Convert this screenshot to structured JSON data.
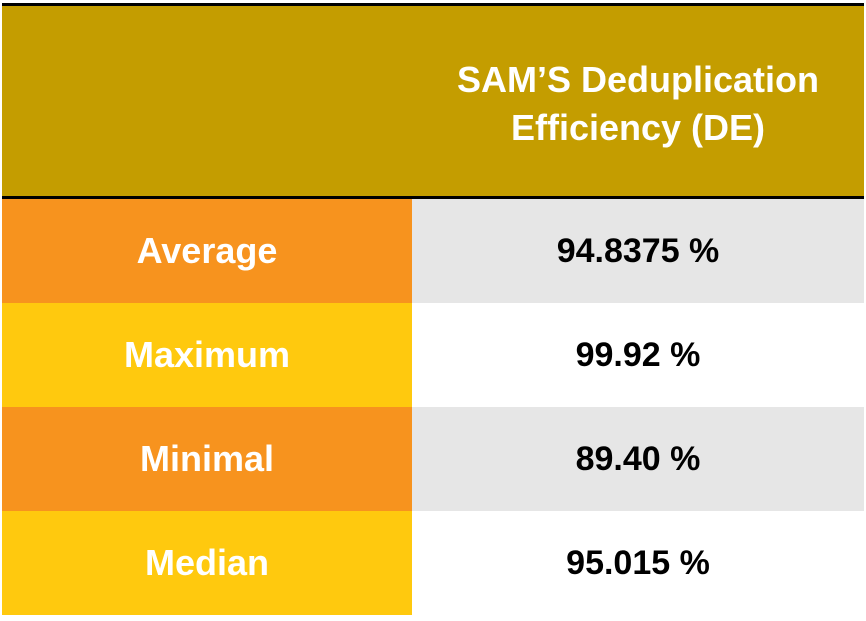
{
  "table": {
    "header": {
      "corner": "",
      "title_line1": "SAM’S Deduplication",
      "title_line2": "Efficiency (DE)"
    },
    "rows": [
      {
        "label": "Average",
        "value": "94.8375 %"
      },
      {
        "label": "Maximum",
        "value": "99.92 %"
      },
      {
        "label": "Minimal",
        "value": "89.40 %"
      },
      {
        "label": "Median",
        "value": "95.015 %"
      }
    ]
  },
  "colors": {
    "header_bg": "#c49d00",
    "label_orange": "#f7931e",
    "label_yellow": "#ffc90e",
    "value_gray": "#e6e6e6",
    "value_white": "#ffffff"
  }
}
